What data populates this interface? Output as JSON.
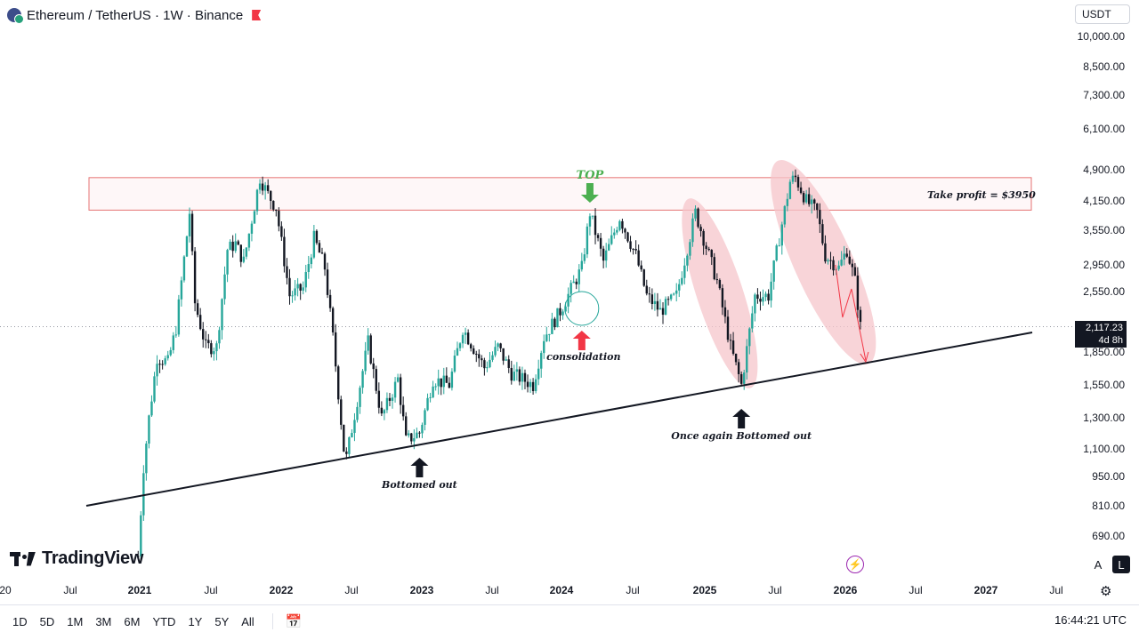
{
  "header": {
    "title": "Ethereum / TetherUS · 1W · Binance"
  },
  "currency": "USDT",
  "price_box": {
    "price": "2,117.23",
    "countdown": "4d 8h"
  },
  "brand": "TradingView",
  "timeframes": [
    "1D",
    "5D",
    "1M",
    "3M",
    "6M",
    "YTD",
    "1Y",
    "5Y",
    "All"
  ],
  "clock": "16:44:21 UTC",
  "scale_buttons": {
    "auto": "A",
    "log": "L"
  },
  "annotations": {
    "top": "TOP",
    "consolidation": "consolidation",
    "bottomed_out": "Bottomed out",
    "once_again": "Once again Bottomed out",
    "take_profit": "Take profit = $3950"
  },
  "colors": {
    "up": "#26a69a",
    "down": "#131722",
    "green_arrow": "#4caf50",
    "red_arrow": "#f23645",
    "zone_border": "#e57373",
    "ellipse_fill": "#f5c6cb"
  },
  "chart_data": {
    "type": "candlestick",
    "title": "Ethereum / TetherUS · 1W · Binance",
    "y_scale": "log",
    "y_ticks": [
      "10,000.00",
      "8,500.00",
      "7,300.00",
      "6,100.00",
      "4,900.00",
      "4,150.00",
      "3,550.00",
      "2,950.00",
      "2,550.00",
      "1,850.00",
      "1,550.00",
      "1,300.00",
      "1,100.00",
      "950.00",
      "810.00",
      "690.00"
    ],
    "x_ticks": [
      {
        "label": "20",
        "bold": false
      },
      {
        "label": "Jul",
        "bold": false
      },
      {
        "label": "2021",
        "bold": true
      },
      {
        "label": "Jul",
        "bold": false
      },
      {
        "label": "2022",
        "bold": true
      },
      {
        "label": "Jul",
        "bold": false
      },
      {
        "label": "2023",
        "bold": true
      },
      {
        "label": "Jul",
        "bold": false
      },
      {
        "label": "2024",
        "bold": true
      },
      {
        "label": "Jul",
        "bold": false
      },
      {
        "label": "2025",
        "bold": true
      },
      {
        "label": "Jul",
        "bold": false
      },
      {
        "label": "2026",
        "bold": true
      },
      {
        "label": "Jul",
        "bold": false
      },
      {
        "label": "2027",
        "bold": true
      },
      {
        "label": "Jul",
        "bold": false
      }
    ],
    "last_price": 2117.23,
    "take_profit_zone": [
      3950,
      4700
    ],
    "path_points": [
      [
        "2020-12-28",
        620
      ],
      [
        "2021-01-11",
        1000
      ],
      [
        "2021-01-25",
        1300
      ],
      [
        "2021-02-15",
        1800
      ],
      [
        "2021-03-15",
        1750
      ],
      [
        "2021-04-05",
        2100
      ],
      [
        "2021-05-10",
        3900
      ],
      [
        "2021-05-24",
        2400
      ],
      [
        "2021-06-21",
        1900
      ],
      [
        "2021-07-19",
        1900
      ],
      [
        "2021-08-16",
        3200
      ],
      [
        "2021-09-06",
        3300
      ],
      [
        "2021-09-27",
        3000
      ],
      [
        "2021-11-08",
        4700
      ],
      [
        "2021-11-29",
        4300
      ],
      [
        "2021-12-20",
        4000
      ],
      [
        "2022-01-24",
        2500
      ],
      [
        "2022-02-28",
        2600
      ],
      [
        "2022-03-28",
        3400
      ],
      [
        "2022-04-25",
        2900
      ],
      [
        "2022-05-16",
        2000
      ],
      [
        "2022-06-13",
        1100
      ],
      [
        "2022-06-20",
        1050
      ],
      [
        "2022-08-15",
        1950
      ],
      [
        "2022-09-19",
        1300
      ],
      [
        "2022-10-31",
        1600
      ],
      [
        "2022-11-21",
        1150
      ],
      [
        "2022-12-26",
        1200
      ],
      [
        "2023-01-30",
        1600
      ],
      [
        "2023-03-13",
        1550
      ],
      [
        "2023-04-17",
        2100
      ],
      [
        "2023-06-12",
        1700
      ],
      [
        "2023-07-17",
        1900
      ],
      [
        "2023-08-21",
        1650
      ],
      [
        "2023-10-16",
        1550
      ],
      [
        "2023-11-13",
        2000
      ],
      [
        "2023-12-25",
        2300
      ],
      [
        "2024-02-19",
        2900
      ],
      [
        "2024-03-11",
        3900
      ],
      [
        "2024-04-15",
        3000
      ],
      [
        "2024-05-27",
        3800
      ],
      [
        "2024-07-08",
        3100
      ],
      [
        "2024-08-05",
        2500
      ],
      [
        "2024-09-09",
        2300
      ],
      [
        "2024-10-21",
        2500
      ],
      [
        "2024-12-09",
        3900
      ],
      [
        "2024-12-30",
        3400
      ],
      [
        "2025-02-03",
        2700
      ],
      [
        "2025-03-10",
        1900
      ],
      [
        "2025-04-07",
        1550
      ],
      [
        "2025-05-12",
        2500
      ],
      [
        "2025-06-16",
        2500
      ],
      [
        "2025-07-14",
        3400
      ],
      [
        "2025-08-11",
        4600
      ],
      [
        "2025-08-25",
        4700
      ],
      [
        "2025-09-22",
        4150
      ],
      [
        "2025-10-20",
        3900
      ],
      [
        "2025-11-10",
        3100
      ],
      [
        "2025-12-15",
        2900
      ],
      [
        "2026-01-05",
        3200
      ],
      [
        "2026-01-26",
        2700
      ],
      [
        "2026-02-09",
        2117
      ]
    ],
    "trendline": [
      [
        "2020-11-01",
        820
      ],
      [
        "2026-06-01",
        2000
      ]
    ],
    "markers": [
      {
        "name": "top",
        "date": "2024-03-11",
        "price": 3900
      },
      {
        "name": "consolidation",
        "date": "2024-02-19",
        "price": 2300
      },
      {
        "name": "bottomed_out",
        "date": "2022-12-26",
        "price": 1100
      },
      {
        "name": "once_again",
        "date": "2025-04-07",
        "price": 1500
      }
    ]
  }
}
